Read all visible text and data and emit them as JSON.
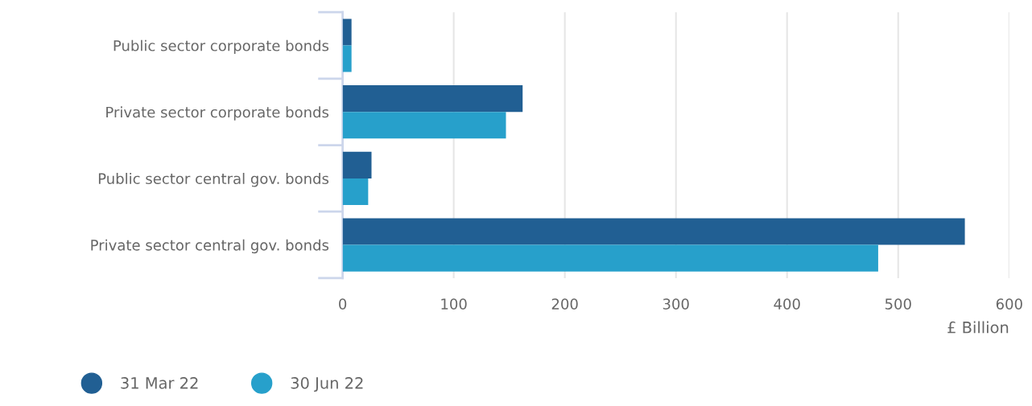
{
  "chart_data": {
    "type": "bar",
    "orientation": "horizontal",
    "xlabel": "£ Billion",
    "categories": [
      "Public sector corporate bonds",
      "Private sector corporate bonds",
      "Public sector central gov. bonds",
      "Private sector central gov. bonds"
    ],
    "series": [
      {
        "name": "31 Mar 22",
        "color": "#215f93",
        "values": [
          8,
          162,
          26,
          560
        ]
      },
      {
        "name": "30 Jun 22",
        "color": "#27a0cb",
        "values": [
          8,
          147,
          23,
          482
        ]
      }
    ],
    "xlim": [
      0,
      600
    ],
    "xticks": [
      0,
      100,
      200,
      300,
      400,
      500,
      600
    ],
    "grid": "x",
    "legend": "bottom left"
  }
}
